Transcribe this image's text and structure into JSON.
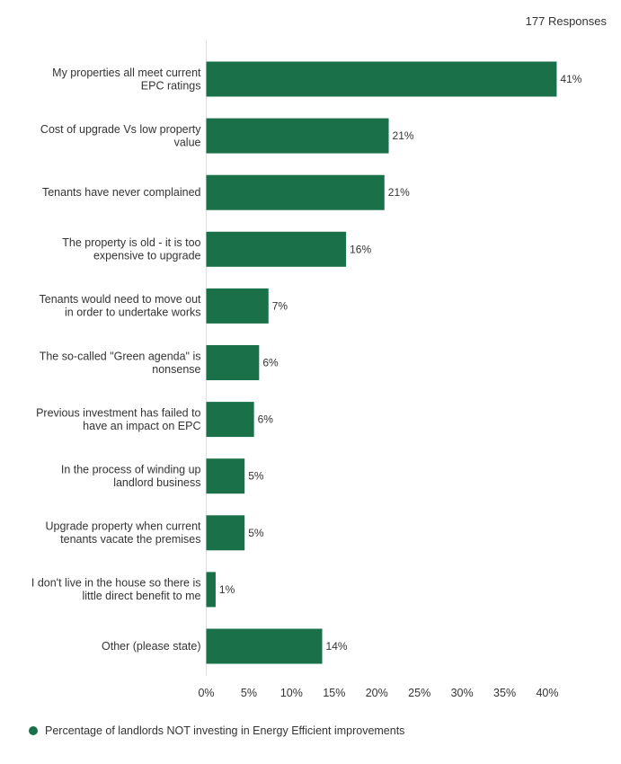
{
  "responses_label": "177 Responses",
  "chart_data": {
    "type": "bar",
    "orientation": "horizontal",
    "categories": [
      [
        "My properties all meet current",
        "EPC ratings"
      ],
      [
        "Cost of upgrade Vs low property",
        "value"
      ],
      [
        "Tenants have never complained"
      ],
      [
        "The property is old - it is too",
        "expensive to upgrade"
      ],
      [
        "Tenants would need to move out",
        "in order to undertake works"
      ],
      [
        "The so-called \"Green agenda\" is",
        "nonsense"
      ],
      [
        "Previous investment has failed to",
        "have an impact on EPC"
      ],
      [
        "In the process of winding up",
        "landlord business"
      ],
      [
        "Upgrade property when current",
        "tenants vacate the premises"
      ],
      [
        "I don't live in the house so there is",
        "little direct benefit to me"
      ],
      [
        "Other (please state)"
      ]
    ],
    "values": [
      41.1,
      21.4,
      20.9,
      16.4,
      7.3,
      6.2,
      5.6,
      4.5,
      4.5,
      1.1,
      13.6
    ],
    "value_labels": [
      "41%",
      "21%",
      "21%",
      "16%",
      "7%",
      "6%",
      "6%",
      "5%",
      "5%",
      "1%",
      "14%"
    ],
    "xlim": [
      0,
      40
    ],
    "x_ticks": [
      "0%",
      "5%",
      "10%",
      "15%",
      "20%",
      "25%",
      "30%",
      "35%",
      "40%"
    ],
    "series": [
      {
        "name": "Percentage of landlords NOT investing in Energy Efficient improvements",
        "color": "#1a7048"
      }
    ],
    "legend_position": "bottom-left",
    "grid": false
  }
}
